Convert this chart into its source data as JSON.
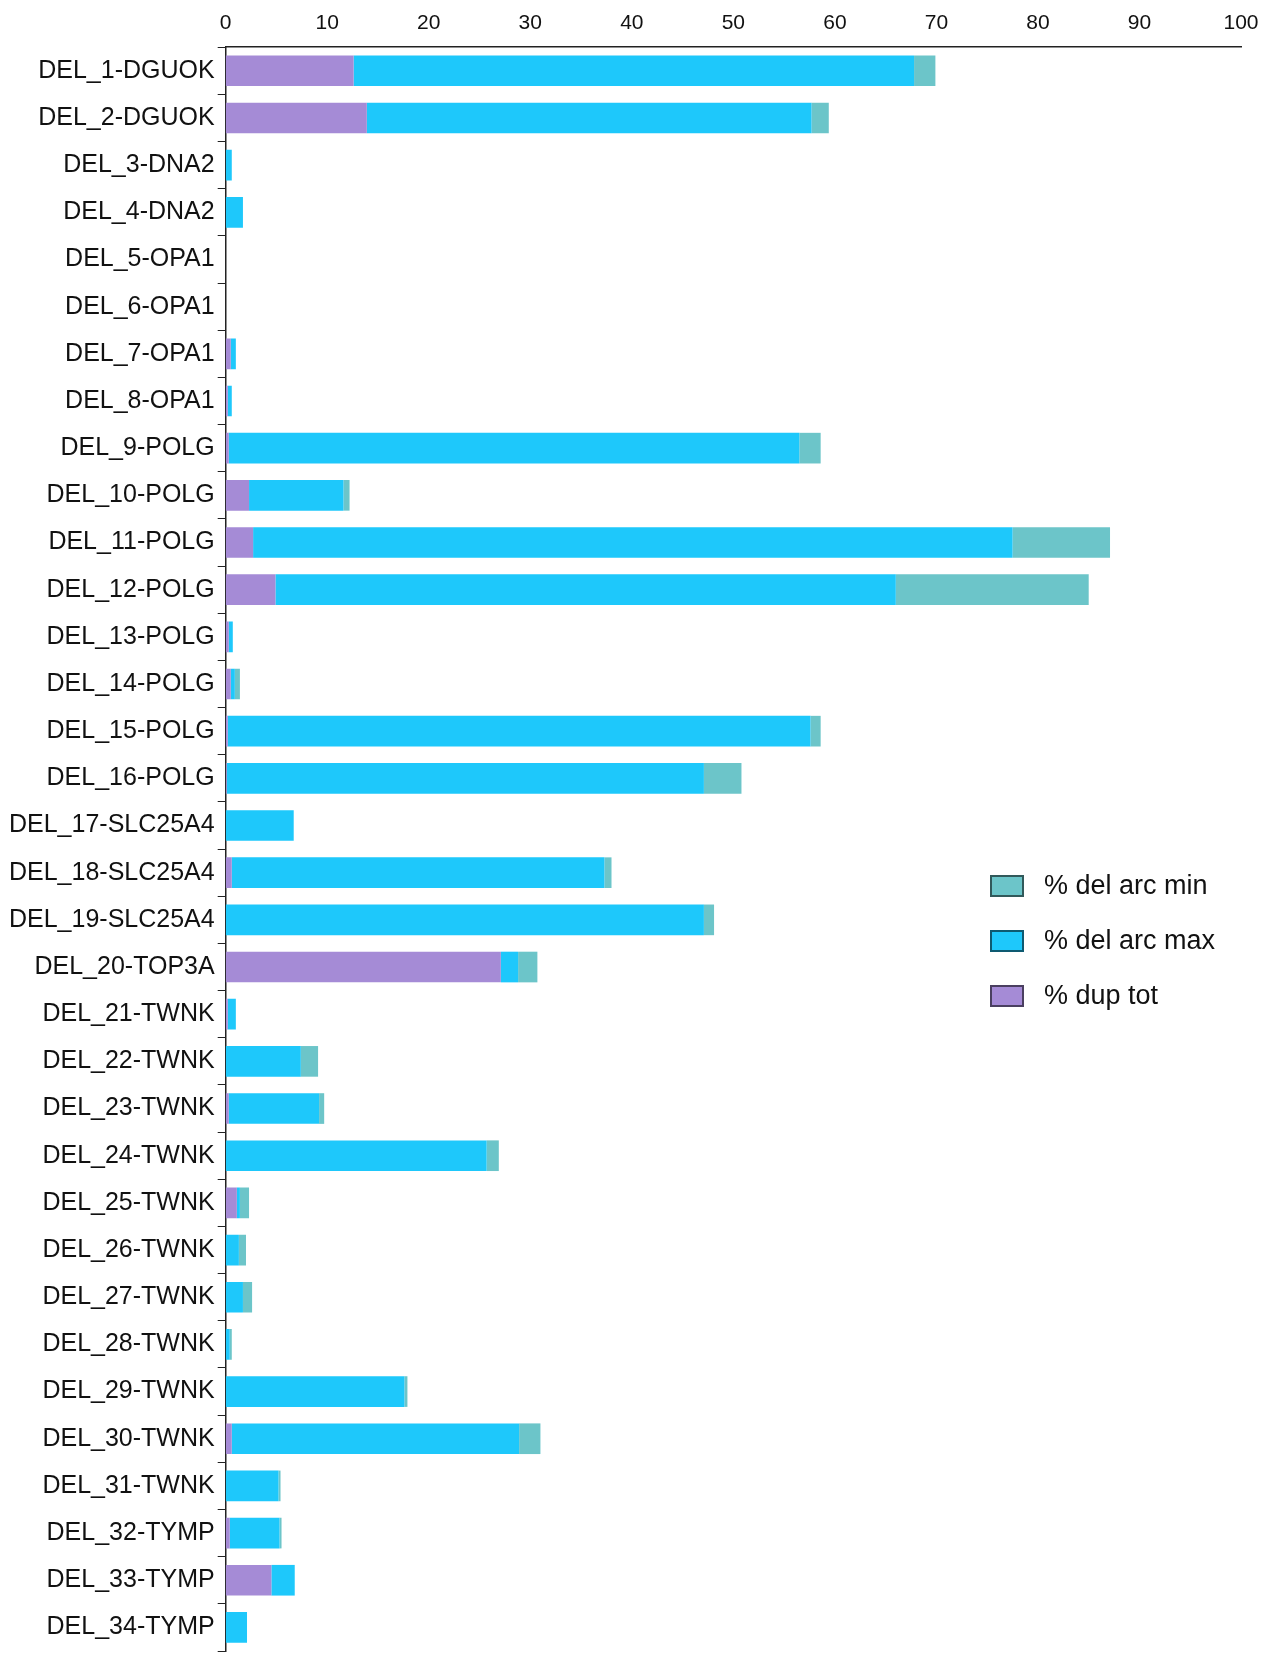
{
  "chart_data": {
    "type": "bar",
    "orientation": "horizontal",
    "stacked": true,
    "categories": [
      "DEL_1-DGUOK",
      "DEL_2-DGUOK",
      "DEL_3-DNA2",
      "DEL_4-DNA2",
      "DEL_5-OPA1",
      "DEL_6-OPA1",
      "DEL_7-OPA1",
      "DEL_8-OPA1",
      "DEL_9-POLG",
      "DEL_10-POLG",
      "DEL_11-POLG",
      "DEL_12-POLG",
      "DEL_13-POLG",
      "DEL_14-POLG",
      "DEL_15-POLG",
      "DEL_16-POLG",
      "DEL_17-SLC25A4",
      "DEL_18-SLC25A4",
      "DEL_19-SLC25A4",
      "DEL_20-TOP3A",
      "DEL_21-TWNK",
      "DEL_22-TWNK",
      "DEL_23-TWNK",
      "DEL_24-TWNK",
      "DEL_25-TWNK",
      "DEL_26-TWNK",
      "DEL_27-TWNK",
      "DEL_28-TWNK",
      "DEL_29-TWNK",
      "DEL_30-TWNK",
      "DEL_31-TWNK",
      "DEL_32-TYMP",
      "DEL_33-TYMP",
      "DEL_34-TYMP"
    ],
    "series": [
      {
        "name": "% dup tot",
        "color": "#a58bd6",
        "values": [
          12.6,
          13.9,
          0,
          0,
          0,
          0,
          0.5,
          0.2,
          0.3,
          2.3,
          2.7,
          4.9,
          0.3,
          0.5,
          0.2,
          0.1,
          0,
          0.6,
          0,
          27.1,
          0.2,
          0,
          0.3,
          0,
          1.1,
          0,
          0,
          0,
          0,
          0.6,
          0,
          0.4,
          4.5,
          0
        ]
      },
      {
        "name": "% del arc max",
        "color": "#1ec8fb",
        "values": [
          55.2,
          43.8,
          0.6,
          1.7,
          0,
          0,
          0.5,
          0.4,
          56.2,
          9.3,
          74.8,
          61.1,
          0.4,
          0.4,
          57.4,
          47.0,
          6.7,
          36.7,
          47.1,
          1.7,
          0.8,
          7.4,
          8.9,
          25.7,
          0.3,
          1.3,
          1.7,
          0.4,
          17.6,
          28.3,
          5.2,
          4.9,
          2.3,
          2.1
        ]
      },
      {
        "name": "% del arc min",
        "color": "#6cc5c9",
        "values": [
          2.1,
          1.7,
          0,
          0,
          0,
          0,
          0,
          0,
          2.1,
          0.6,
          9.6,
          19.0,
          0,
          0.5,
          1.0,
          3.7,
          0,
          0.7,
          1.0,
          1.9,
          0,
          1.7,
          0.5,
          1.2,
          0.9,
          0.7,
          0.9,
          0.2,
          0.3,
          2.1,
          0.2,
          0.2,
          0,
          0
        ]
      }
    ],
    "xlim": [
      0,
      100
    ],
    "xticks": [
      0,
      10,
      20,
      30,
      40,
      50,
      60,
      70,
      80,
      90,
      100
    ],
    "grid": false,
    "legend": "right"
  }
}
